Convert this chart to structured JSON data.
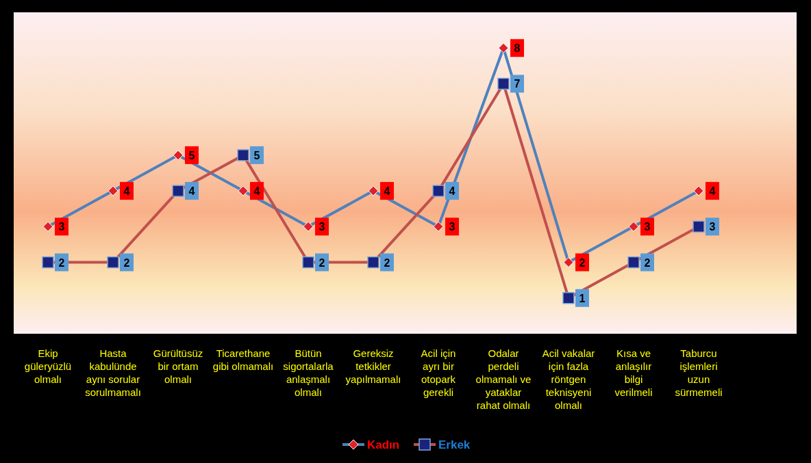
{
  "chart_data": {
    "type": "line",
    "categories": [
      "Ekip güleryüzlü olmalı",
      "Hasta kabulünde aynı sorular sorulmamalı",
      "Gürültüsüz bir ortam olmalı",
      "Ticarethane gibi olmamalı",
      "Bütün sigortalarla anlaşmalı olmalı",
      "Gereksiz tetkikler yapılmamalı",
      "Acil için ayrı bir otopark gerekli",
      "Odalar perdeli olmamalı ve yataklar rahat olmalı",
      "Acil vakalar için fazla röntgen teknisyeni olmalı",
      "Kısa ve anlaşılır bilgi verilmeli",
      "Taburcu işlemleri uzun sürmemeli"
    ],
    "series": [
      {
        "name": "Kadın",
        "color": "#4f81bd",
        "marker": "diamond",
        "values": [
          3,
          4,
          5,
          4,
          3,
          4,
          3,
          8,
          2,
          3,
          4
        ]
      },
      {
        "name": "Erkek",
        "color": "#c0504d",
        "marker": "square",
        "values": [
          2,
          2,
          4,
          5,
          2,
          2,
          4,
          7,
          1,
          2,
          3
        ]
      }
    ],
    "ylim": [
      0,
      9
    ],
    "tick_labels": "x",
    "data_labels": true,
    "legend": "bottom"
  }
}
